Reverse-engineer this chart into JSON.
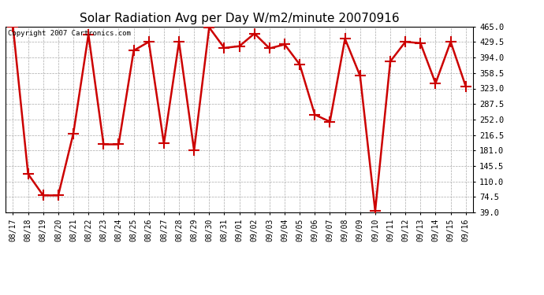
{
  "title": "Solar Radiation Avg per Day W/m2/minute 20070916",
  "copyright": "Copyright 2007 Cartronics.com",
  "dates": [
    "08/17",
    "08/18",
    "08/19",
    "08/20",
    "08/21",
    "08/22",
    "08/23",
    "08/24",
    "08/25",
    "08/26",
    "08/27",
    "08/28",
    "08/29",
    "08/30",
    "08/31",
    "09/01",
    "09/02",
    "09/03",
    "09/04",
    "09/05",
    "09/06",
    "09/07",
    "09/08",
    "09/09",
    "09/10",
    "09/11",
    "09/12",
    "09/13",
    "09/14",
    "09/15",
    "09/16"
  ],
  "values": [
    465.0,
    127.0,
    78.0,
    78.0,
    220.0,
    447.0,
    195.0,
    195.0,
    410.0,
    430.0,
    197.0,
    430.0,
    181.0,
    463.0,
    416.0,
    420.0,
    449.0,
    415.0,
    424.0,
    378.0,
    263.0,
    247.0,
    437.0,
    352.0,
    42.0,
    385.0,
    430.0,
    427.0,
    335.0,
    430.0,
    328.0
  ],
  "line_color": "#cc0000",
  "marker_color": "#cc0000",
  "bg_color": "#ffffff",
  "plot_bg_color": "#ffffff",
  "grid_color": "#aaaaaa",
  "title_fontsize": 11,
  "y_ticks": [
    39.0,
    74.5,
    110.0,
    145.5,
    181.0,
    216.5,
    252.0,
    287.5,
    323.0,
    358.5,
    394.0,
    429.5,
    465.0
  ],
  "ylim": [
    39.0,
    465.0
  ],
  "marker_size": 5,
  "line_width": 1.8
}
